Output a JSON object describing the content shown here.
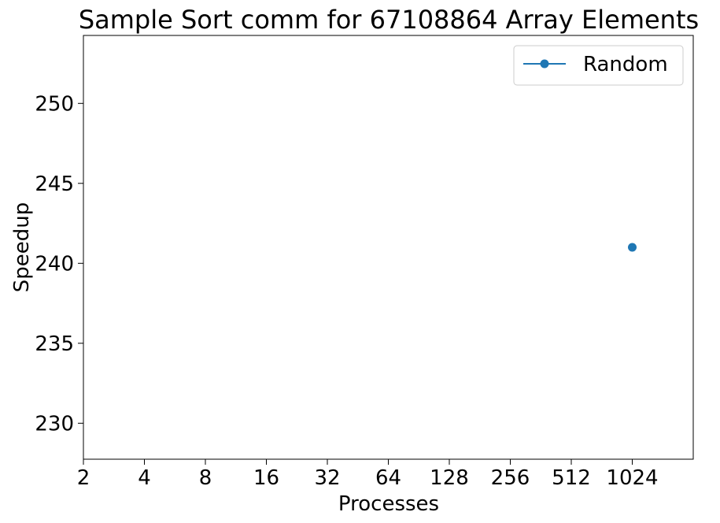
{
  "chart_data": {
    "type": "line",
    "title": "Sample Sort comm for 67108864 Array Elements",
    "xlabel": "Processes",
    "ylabel": "Speedup",
    "x_scale": "log2",
    "x_ticks": [
      2,
      4,
      8,
      16,
      32,
      64,
      128,
      256,
      512,
      1024
    ],
    "x_tick_labels": [
      "2",
      "4",
      "8",
      "16",
      "32",
      "64",
      "128",
      "256",
      "512",
      "1024"
    ],
    "xlim": [
      2,
      2048
    ],
    "ylim": [
      227.75,
      254.25
    ],
    "y_ticks": [
      230,
      235,
      240,
      245,
      250
    ],
    "y_tick_labels": [
      "230",
      "235",
      "240",
      "245",
      "250"
    ],
    "grid": false,
    "legend_position": "top-right",
    "series": [
      {
        "name": "Random",
        "color": "#1f77b4",
        "marker": "circle",
        "points": [
          {
            "x": 1024,
            "y": 241.0
          }
        ]
      }
    ]
  }
}
